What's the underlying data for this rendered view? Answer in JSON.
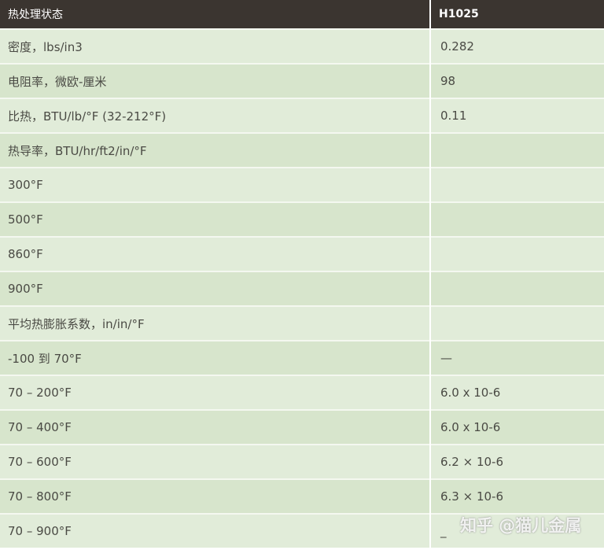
{
  "header": {
    "property": "热处理状态",
    "value": "H1025"
  },
  "rows": [
    {
      "label": "密度，lbs/in3",
      "value": "0.282"
    },
    {
      "label": "电阻率，微欧-厘米",
      "value": "98"
    },
    {
      "label": "比热，BTU/lb/°F (32-212°F)",
      "value": "0.11"
    },
    {
      "label": "热导率，BTU/hr/ft2/in/°F",
      "value": ""
    },
    {
      "label": "300°F",
      "value": ""
    },
    {
      "label": "500°F",
      "value": ""
    },
    {
      "label": "860°F",
      "value": ""
    },
    {
      "label": "900°F",
      "value": ""
    },
    {
      "label": "平均热膨胀系数，in/in/°F",
      "value": ""
    },
    {
      "label": "-100 到 70°F",
      "value": "—"
    },
    {
      "label": "70 – 200°F",
      "value": "6.0 x 10-6"
    },
    {
      "label": "70 – 400°F",
      "value": "6.0 x 10-6"
    },
    {
      "label": "70 – 600°F",
      "value": "6.2 × 10-6"
    },
    {
      "label": "70 – 800°F",
      "value": "6.3 × 10-6"
    },
    {
      "label": "70 – 900°F",
      "value": "_"
    }
  ],
  "watermark": "知乎 @猫儿金属"
}
